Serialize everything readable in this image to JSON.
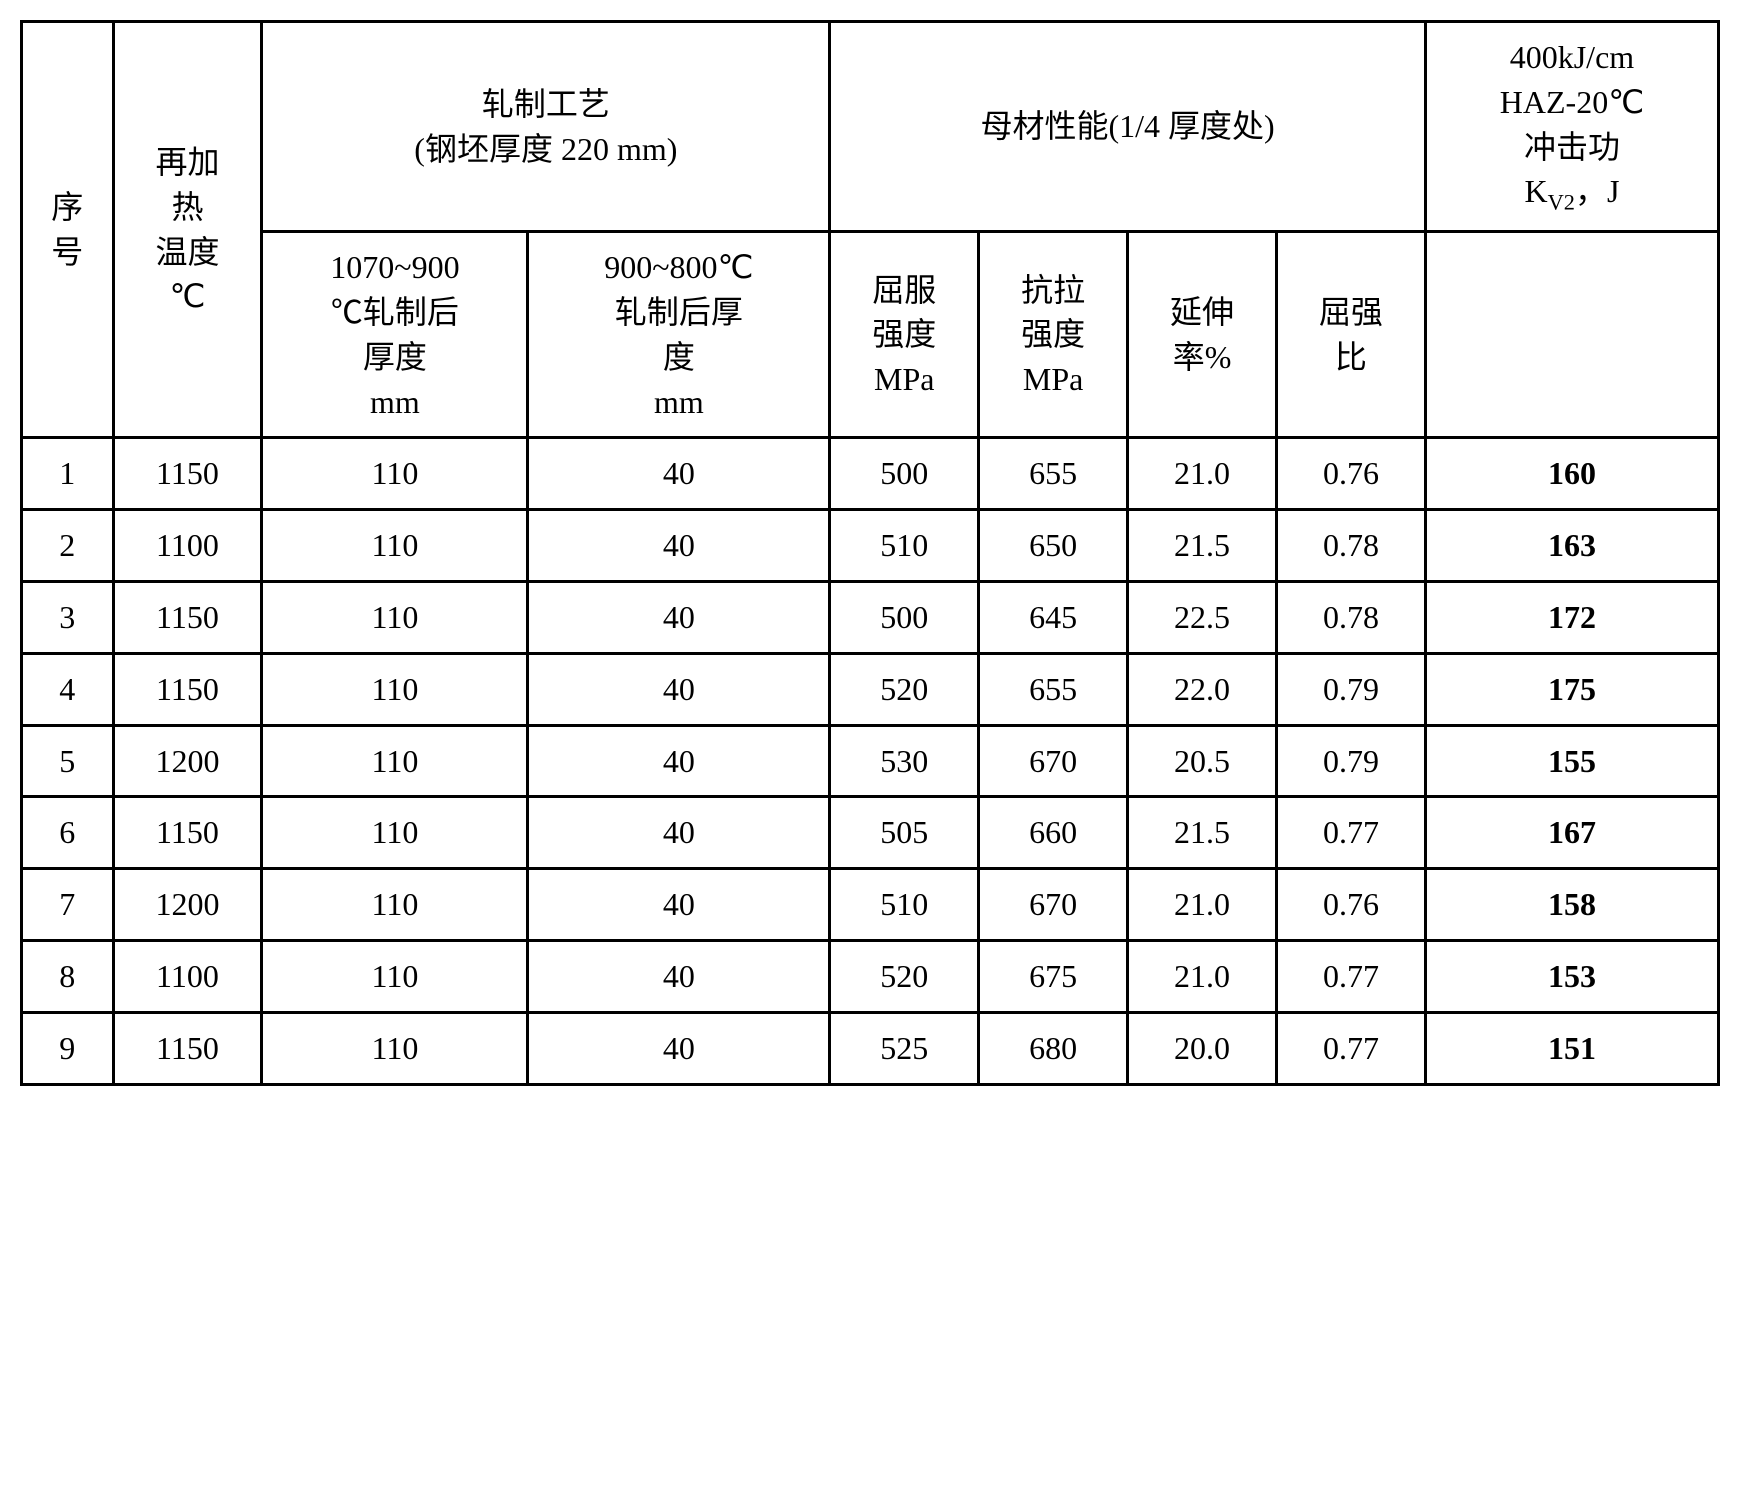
{
  "table": {
    "background_color": "#ffffff",
    "border_color": "#000000",
    "border_width": 3,
    "font_family": "SimSun",
    "header_font_size": 32,
    "cell_font_size": 32,
    "headers": {
      "seq": "序号",
      "reheat_temp": "再加热温度℃",
      "rolling_process": "轧制工艺 (钢坯厚度 220 mm)",
      "rolling_1070_900": "1070~900℃轧制后厚度 mm",
      "rolling_900_800": "900~800℃轧制后厚度 mm",
      "base_material": "母材性能(1/4 厚度处)",
      "yield_strength": "屈服强度MPa",
      "tensile_strength": "抗拉强度MPa",
      "elongation": "延伸率%",
      "yield_ratio": "屈强比",
      "impact_energy": "400kJ/cm HAZ-20℃ 冲击功 KV2, J"
    },
    "columns": [
      "seq",
      "reheat_temp",
      "rolling_1070_900",
      "rolling_900_800",
      "yield_strength",
      "tensile_strength",
      "elongation",
      "yield_ratio",
      "impact_energy"
    ],
    "rows": [
      {
        "seq": "1",
        "reheat_temp": "1150",
        "rolling_1070_900": "110",
        "rolling_900_800": "40",
        "yield_strength": "500",
        "tensile_strength": "655",
        "elongation": "21.0",
        "yield_ratio": "0.76",
        "impact_energy": "160"
      },
      {
        "seq": "2",
        "reheat_temp": "1100",
        "rolling_1070_900": "110",
        "rolling_900_800": "40",
        "yield_strength": "510",
        "tensile_strength": "650",
        "elongation": "21.5",
        "yield_ratio": "0.78",
        "impact_energy": "163"
      },
      {
        "seq": "3",
        "reheat_temp": "1150",
        "rolling_1070_900": "110",
        "rolling_900_800": "40",
        "yield_strength": "500",
        "tensile_strength": "645",
        "elongation": "22.5",
        "yield_ratio": "0.78",
        "impact_energy": "172"
      },
      {
        "seq": "4",
        "reheat_temp": "1150",
        "rolling_1070_900": "110",
        "rolling_900_800": "40",
        "yield_strength": "520",
        "tensile_strength": "655",
        "elongation": "22.0",
        "yield_ratio": "0.79",
        "impact_energy": "175"
      },
      {
        "seq": "5",
        "reheat_temp": "1200",
        "rolling_1070_900": "110",
        "rolling_900_800": "40",
        "yield_strength": "530",
        "tensile_strength": "670",
        "elongation": "20.5",
        "yield_ratio": "0.79",
        "impact_energy": "155"
      },
      {
        "seq": "6",
        "reheat_temp": "1150",
        "rolling_1070_900": "110",
        "rolling_900_800": "40",
        "yield_strength": "505",
        "tensile_strength": "660",
        "elongation": "21.5",
        "yield_ratio": "0.77",
        "impact_energy": "167"
      },
      {
        "seq": "7",
        "reheat_temp": "1200",
        "rolling_1070_900": "110",
        "rolling_900_800": "40",
        "yield_strength": "510",
        "tensile_strength": "670",
        "elongation": "21.0",
        "yield_ratio": "0.76",
        "impact_energy": "158"
      },
      {
        "seq": "8",
        "reheat_temp": "1100",
        "rolling_1070_900": "110",
        "rolling_900_800": "40",
        "yield_strength": "520",
        "tensile_strength": "675",
        "elongation": "21.0",
        "yield_ratio": "0.77",
        "impact_energy": "153"
      },
      {
        "seq": "9",
        "reheat_temp": "1150",
        "rolling_1070_900": "110",
        "rolling_900_800": "40",
        "yield_strength": "525",
        "tensile_strength": "680",
        "elongation": "20.0",
        "yield_ratio": "0.77",
        "impact_energy": "151"
      }
    ],
    "bold_columns": [
      "impact_energy"
    ]
  }
}
